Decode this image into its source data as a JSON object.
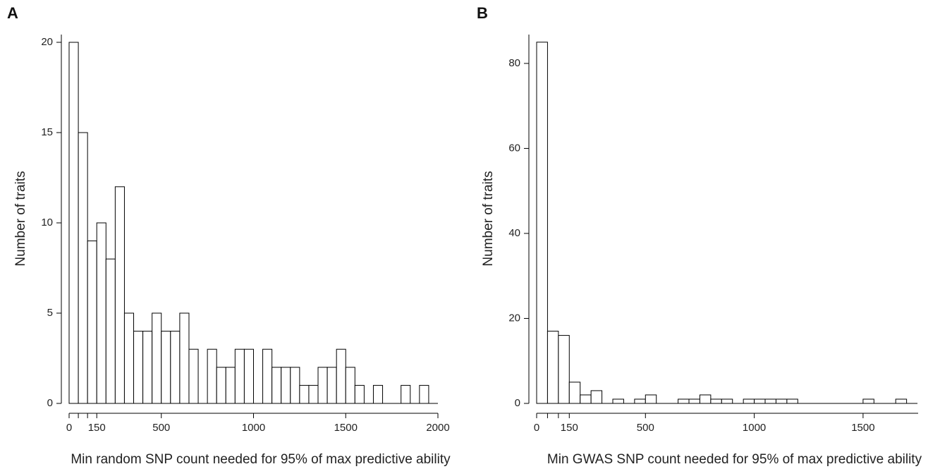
{
  "panels": {
    "a_label": "A",
    "b_label": "B"
  },
  "chart_data": [
    {
      "type": "bar",
      "panel": "A",
      "title": "",
      "xlabel": "Min random SNP count needed for 95% of max predictive ability",
      "ylabel": "Number of traits",
      "bin_width": 50,
      "xlim": [
        0,
        2000
      ],
      "ylim": [
        0,
        20
      ],
      "x_ticks": [
        0,
        50,
        100,
        150,
        500,
        1000,
        1500,
        2000
      ],
      "x_tick_labels": [
        "0",
        "",
        "",
        "150",
        "500",
        "1000",
        "1500",
        "2000"
      ],
      "y_ticks": [
        0,
        5,
        10,
        15,
        20
      ],
      "bins_start": [
        0,
        50,
        100,
        150,
        200,
        250,
        300,
        350,
        400,
        450,
        500,
        550,
        600,
        650,
        700,
        750,
        800,
        850,
        900,
        950,
        1000,
        1050,
        1100,
        1150,
        1200,
        1250,
        1300,
        1350,
        1400,
        1450,
        1500,
        1550,
        1600,
        1650,
        1700,
        1750,
        1800,
        1850,
        1900,
        1950
      ],
      "values": [
        20,
        15,
        9,
        10,
        8,
        12,
        5,
        4,
        4,
        5,
        4,
        4,
        5,
        3,
        0,
        3,
        2,
        2,
        3,
        3,
        0,
        3,
        2,
        2,
        2,
        1,
        1,
        2,
        2,
        3,
        2,
        1,
        0,
        1,
        0,
        0,
        1,
        0,
        1,
        0
      ]
    },
    {
      "type": "bar",
      "panel": "B",
      "title": "",
      "xlabel": "Min GWAS SNP count needed for 95% of max predictive ability",
      "ylabel": "Number of traits",
      "bin_width": 50,
      "xlim": [
        0,
        1750
      ],
      "ylim": [
        0,
        85
      ],
      "x_ticks": [
        0,
        50,
        100,
        150,
        500,
        1000,
        1500
      ],
      "x_tick_labels": [
        "0",
        "",
        "",
        "150",
        "500",
        "1000",
        "1500"
      ],
      "y_ticks": [
        0,
        20,
        40,
        60,
        80
      ],
      "bins_start": [
        0,
        50,
        100,
        150,
        200,
        250,
        300,
        350,
        400,
        450,
        500,
        550,
        600,
        650,
        700,
        750,
        800,
        850,
        900,
        950,
        1000,
        1050,
        1100,
        1150,
        1200,
        1250,
        1300,
        1350,
        1400,
        1450,
        1500,
        1550,
        1600,
        1650,
        1700
      ],
      "values": [
        85,
        17,
        16,
        5,
        2,
        3,
        0,
        1,
        0,
        1,
        2,
        0,
        0,
        1,
        1,
        2,
        1,
        1,
        0,
        1,
        1,
        1,
        1,
        1,
        0,
        0,
        0,
        0,
        0,
        0,
        1,
        0,
        0,
        1,
        0
      ]
    }
  ]
}
